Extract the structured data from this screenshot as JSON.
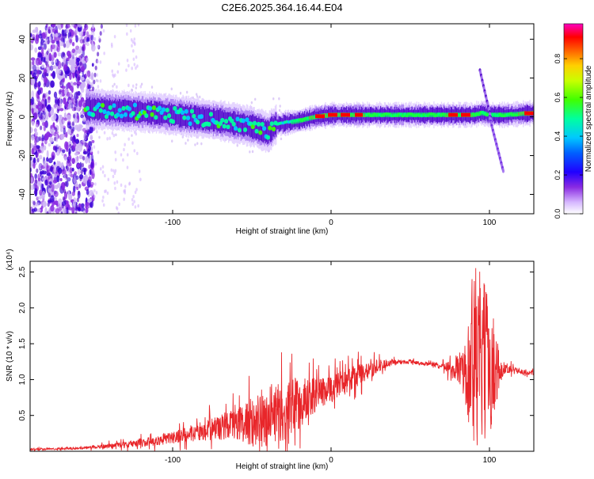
{
  "title": "C2E6.2025.364.16.44.E04",
  "chart_data": [
    {
      "type": "heatmap",
      "title": "C2E6.2025.364.16.44.E04",
      "xlabel": "Height of straight line (km)",
      "ylabel": "Frequency (Hz)",
      "xlim": [
        -190,
        128
      ],
      "ylim": [
        -50,
        48
      ],
      "x_ticks": [
        -100,
        0,
        100
      ],
      "y_ticks": [
        -40,
        -20,
        0,
        20,
        40
      ],
      "colorbar": {
        "label": "Normalized spectral amplitude",
        "range": [
          0,
          0.98
        ],
        "ticks": [
          0.0,
          0.2,
          0.4,
          0.6,
          0.8
        ],
        "colormap": "rainbow"
      },
      "ridge": {
        "x": [
          -150,
          -130,
          -110,
          -90,
          -70,
          -50,
          -40,
          -35,
          -20,
          -10,
          0,
          20,
          40,
          60,
          80,
          90,
          95,
          100,
          110,
          128
        ],
        "y": [
          4,
          3,
          2,
          0,
          -2,
          -5,
          -8,
          -4,
          -2,
          0,
          1,
          1,
          1,
          1,
          1,
          1,
          2,
          1,
          1,
          2
        ]
      },
      "colors": {
        "noise": "#8a2be2",
        "band_low": "#4b00c8",
        "band_mid": "#00ff80",
        "band_high": "#ff0000"
      }
    },
    {
      "type": "line",
      "title": "",
      "xlabel": "Height of straight line (km)",
      "ylabel": "SNR (10 * v/v)",
      "y_multiplier": "(x10⁴)",
      "xlim": [
        -190,
        128
      ],
      "ylim": [
        0,
        2.65
      ],
      "x_ticks": [
        -100,
        0,
        100
      ],
      "y_ticks": [
        0.5,
        1.0,
        1.5,
        2.0,
        2.5
      ],
      "y_tick_labels": [
        "0.5",
        "1.0",
        "1.5",
        "2.0",
        "2.5"
      ],
      "series": [
        {
          "name": "SNR",
          "color": "#e8262a",
          "envelope": {
            "x": [
              -190,
              -160,
              -140,
              -120,
              -100,
              -80,
              -60,
              -50,
              -40,
              -30,
              -20,
              -10,
              0,
              10,
              20,
              30,
              40,
              50,
              60,
              70,
              76,
              80,
              85,
              90,
              95,
              100,
              105,
              110,
              120,
              128
            ],
            "mean": [
              0.03,
              0.04,
              0.08,
              0.12,
              0.2,
              0.3,
              0.4,
              0.45,
              0.5,
              0.6,
              0.7,
              0.8,
              0.9,
              1.0,
              1.1,
              1.2,
              1.25,
              1.25,
              1.22,
              1.2,
              1.15,
              1.2,
              1.2,
              1.3,
              1.25,
              1.2,
              1.15,
              1.15,
              1.12,
              1.1
            ],
            "amplitude": [
              0.02,
              0.02,
              0.05,
              0.08,
              0.12,
              0.2,
              0.3,
              0.5,
              0.6,
              0.6,
              0.55,
              0.35,
              0.3,
              0.25,
              0.2,
              0.12,
              0.05,
              0.04,
              0.03,
              0.05,
              0.2,
              0.3,
              0.5,
              1.3,
              1.1,
              0.9,
              0.4,
              0.1,
              0.05,
              0.05
            ]
          }
        }
      ]
    }
  ]
}
